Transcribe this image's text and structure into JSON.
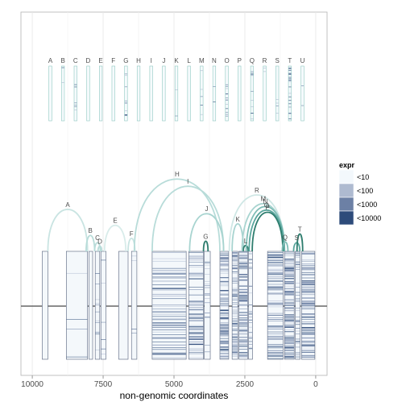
{
  "chart_data": {
    "type": "arc-diagram",
    "xlabel": "non-genomic coordinates",
    "xlim": [
      10400,
      -400
    ],
    "reversed_x": true,
    "x_ticks": [
      10000,
      7500,
      5000,
      2500,
      0
    ],
    "x_tick_labels": [
      "10000",
      "7500",
      "5000",
      "2500",
      "0"
    ],
    "grid": true,
    "legend": {
      "title": "expr",
      "position": "right",
      "entries": [
        {
          "label": "<10",
          "color": "#f3f8fc"
        },
        {
          "label": "<100",
          "color": "#aebad0"
        },
        {
          "label": "<1000",
          "color": "#6c80a5"
        },
        {
          "label": "<10000",
          "color": "#2d4b7a"
        }
      ]
    },
    "top_labels": [
      "A",
      "B",
      "C",
      "D",
      "E",
      "F",
      "G",
      "H",
      "I",
      "J",
      "K",
      "L",
      "M",
      "N",
      "O",
      "P",
      "Q",
      "R",
      "S",
      "T",
      "U"
    ],
    "top_density": [
      0,
      2,
      6,
      0,
      0,
      0,
      10,
      0,
      0,
      0,
      2,
      0,
      5,
      2,
      14,
      0,
      10,
      2,
      4,
      22,
      2
    ],
    "segments": [
      {
        "start": 9650,
        "end": 9450,
        "density": 0
      },
      {
        "start": 8800,
        "end": 8050,
        "density": 4
      },
      {
        "start": 8000,
        "end": 7870,
        "density": 0
      },
      {
        "start": 7780,
        "end": 7620,
        "density": 12
      },
      {
        "start": 7580,
        "end": 7400,
        "density": 6
      },
      {
        "start": 6950,
        "end": 6620,
        "density": 0
      },
      {
        "start": 6500,
        "end": 6310,
        "density": 4
      },
      {
        "start": 5770,
        "end": 4570,
        "density": 60
      },
      {
        "start": 4480,
        "end": 3960,
        "density": 80
      },
      {
        "start": 3930,
        "end": 3720,
        "density": 20
      },
      {
        "start": 3380,
        "end": 3070,
        "density": 120
      },
      {
        "start": 2950,
        "end": 2750,
        "density": 100
      },
      {
        "start": 2710,
        "end": 2400,
        "density": 110
      },
      {
        "start": 2370,
        "end": 2230,
        "density": 30
      },
      {
        "start": 1700,
        "end": 1150,
        "density": 90
      },
      {
        "start": 1100,
        "end": 760,
        "density": 140
      },
      {
        "start": 720,
        "end": 550,
        "density": 40
      },
      {
        "start": 500,
        "end": 30,
        "density": 120
      }
    ],
    "arcs": [
      {
        "label": "A",
        "from": 9450,
        "to": 8050,
        "height": 0.58,
        "color": "#c9e4e2"
      },
      {
        "label": "B",
        "from": 8100,
        "to": 7800,
        "height": 0.22,
        "color": "#b8dcd9"
      },
      {
        "label": "C",
        "from": 7800,
        "to": 7600,
        "height": 0.12,
        "color": "#b8dcd9"
      },
      {
        "label": "D",
        "from": 7680,
        "to": 7550,
        "height": 0.07,
        "color": "#b8dcd9"
      },
      {
        "label": "E",
        "from": 7450,
        "to": 6700,
        "height": 0.36,
        "color": "#d8ecea"
      },
      {
        "label": "F",
        "from": 6620,
        "to": 6380,
        "height": 0.18,
        "color": "#c9e4e2"
      },
      {
        "label": "H",
        "from": 6400,
        "to": 3380,
        "height": 1.0,
        "color": "#b8dcd9"
      },
      {
        "label": "I",
        "from": 5770,
        "to": 3250,
        "height": 0.9,
        "color": "#b8dcd9"
      },
      {
        "label": "J",
        "from": 4450,
        "to": 3250,
        "height": 0.52,
        "color": "#a8d4d0"
      },
      {
        "label": "G",
        "from": 3960,
        "to": 3800,
        "height": 0.14,
        "color": "#2e7d6e"
      },
      {
        "label": "K",
        "from": 2950,
        "to": 2550,
        "height": 0.38,
        "color": "#a8d4d0"
      },
      {
        "label": "L",
        "from": 2560,
        "to": 2380,
        "height": 0.08,
        "color": "#2e7d6e"
      },
      {
        "label": "R",
        "from": 3050,
        "to": 1100,
        "height": 0.78,
        "color": "#cfe7e5"
      },
      {
        "label": "M",
        "from": 2600,
        "to": 1100,
        "height": 0.66,
        "color": "#a8d4d0"
      },
      {
        "label": "N",
        "from": 2450,
        "to": 1100,
        "height": 0.62,
        "color": "#7fbdb6"
      },
      {
        "label": "O",
        "from": 2350,
        "to": 1120,
        "height": 0.57,
        "color": "#5aa69d"
      },
      {
        "label": "P",
        "from": 2240,
        "to": 1160,
        "height": 0.54,
        "color": "#2e7d6e"
      },
      {
        "label": "Q",
        "from": 1180,
        "to": 980,
        "height": 0.13,
        "color": "#7fbdb6"
      },
      {
        "label": "S",
        "from": 780,
        "to": 560,
        "height": 0.12,
        "color": "#5aa69d"
      },
      {
        "label": "T",
        "from": 660,
        "to": 460,
        "height": 0.24,
        "color": "#2e7d6e"
      }
    ]
  }
}
